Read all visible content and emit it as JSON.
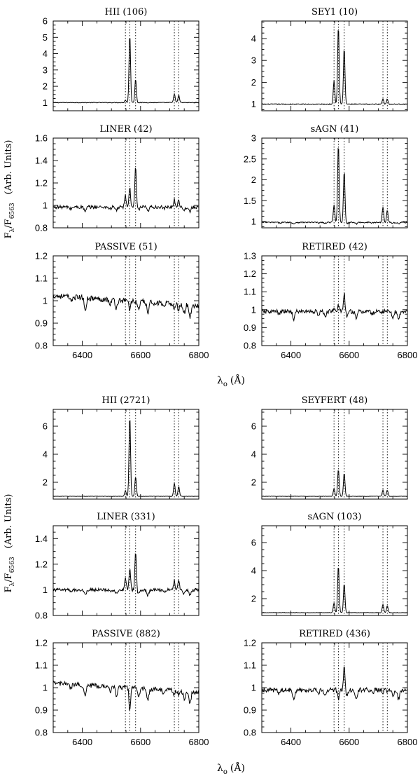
{
  "figure": {
    "xlabel_symbol": "λ",
    "xlabel_sub": "o",
    "xlabel_unit": "(Å)",
    "ylabel_symbol": "F",
    "ylabel_sub1": "λ",
    "ylabel_sep": "/F",
    "ylabel_sub2": "6563",
    "ylabel_units": "(Arb. Units)"
  },
  "chart_data": [
    {
      "type": "line",
      "title": "HII (106)",
      "xlim": [
        6300,
        6800
      ],
      "ylim": [
        0.5,
        6
      ],
      "yticks": [
        1,
        2,
        3,
        4,
        5,
        6
      ],
      "xticks": [
        6400,
        6600,
        6800
      ],
      "lines": [
        6548,
        6563,
        6583,
        6716,
        6731
      ],
      "cont": 1.0,
      "slope": 0.0,
      "noise": 0.02,
      "absorb": 0.0,
      "peaks": [
        0.15,
        4.2,
        1.45,
        0.55,
        0.45
      ]
    },
    {
      "type": "line",
      "title": "SEY1 (10)",
      "xlim": [
        6300,
        6800
      ],
      "ylim": [
        0.7,
        4.8
      ],
      "yticks": [
        1,
        2,
        3,
        4
      ],
      "xticks": [
        6400,
        6600,
        6800
      ],
      "lines": [
        6548,
        6563,
        6583,
        6716,
        6731
      ],
      "cont": 1.0,
      "slope": 0.0,
      "noise": 0.02,
      "absorb": 0.0,
      "peaks": [
        1.1,
        3.6,
        2.6,
        0.25,
        0.25
      ]
    },
    {
      "type": "line",
      "title": "LINER (42)",
      "xlim": [
        6300,
        6800
      ],
      "ylim": [
        0.8,
        1.6
      ],
      "yticks": [
        0.8,
        1,
        1.2,
        1.4,
        1.6
      ],
      "xticks": [
        6400,
        6600,
        6800
      ],
      "lines": [
        6548,
        6563,
        6583,
        6716,
        6731
      ],
      "cont": 0.985,
      "slope": 0.0,
      "noise": 0.015,
      "absorb": 0.05,
      "peaks": [
        0.1,
        0.18,
        0.36,
        0.07,
        0.07
      ]
    },
    {
      "type": "line",
      "title": "sAGN  (41)",
      "xlim": [
        6300,
        6800
      ],
      "ylim": [
        0.85,
        3.0
      ],
      "yticks": [
        1,
        1.5,
        2,
        2.5,
        3
      ],
      "xticks": [
        6400,
        6600,
        6800
      ],
      "lines": [
        6548,
        6563,
        6583,
        6716,
        6731
      ],
      "cont": 0.98,
      "slope": 0.0,
      "noise": 0.015,
      "absorb": 0.04,
      "peaks": [
        0.42,
        1.9,
        1.25,
        0.38,
        0.3
      ]
    },
    {
      "type": "line",
      "title": "PASSIVE (51)",
      "xlim": [
        6300,
        6800
      ],
      "ylim": [
        0.8,
        1.2
      ],
      "yticks": [
        0.8,
        0.9,
        1,
        1.1,
        1.2
      ],
      "xticks": [
        6400,
        6600,
        6800
      ],
      "lines": [
        6548,
        6563,
        6583,
        6716,
        6731
      ],
      "cont": 1.0,
      "slope": -9e-05,
      "noise": 0.012,
      "absorb": 0.06,
      "peaks": [
        0.0,
        -0.04,
        0.0,
        -0.02,
        -0.03
      ]
    },
    {
      "type": "line",
      "title": "RETIRED (42)",
      "xlim": [
        6300,
        6800
      ],
      "ylim": [
        0.8,
        1.3
      ],
      "yticks": [
        0.8,
        0.9,
        1,
        1.1,
        1.2,
        1.3
      ],
      "xticks": [
        6400,
        6600,
        6800
      ],
      "lines": [
        6548,
        6563,
        6583,
        6716,
        6731
      ],
      "cont": 0.99,
      "slope": 0.0,
      "noise": 0.012,
      "absorb": 0.05,
      "peaks": [
        0.02,
        0.04,
        0.1,
        0.0,
        0.0
      ]
    },
    {
      "type": "line",
      "title": "HII (2721)",
      "xlim": [
        6300,
        6800
      ],
      "ylim": [
        0.8,
        7.2
      ],
      "yticks": [
        2,
        4,
        6
      ],
      "xticks": [
        6400,
        6600,
        6800
      ],
      "lines": [
        6548,
        6563,
        6583,
        6716,
        6731
      ],
      "cont": 1.0,
      "slope": 0.0,
      "noise": 0.015,
      "absorb": 0.0,
      "peaks": [
        0.4,
        5.8,
        1.4,
        0.95,
        0.7
      ]
    },
    {
      "type": "line",
      "title": "SEYFERT (48)",
      "xlim": [
        6300,
        6800
      ],
      "ylim": [
        0.8,
        7.2
      ],
      "yticks": [
        2,
        4,
        6
      ],
      "xticks": [
        6400,
        6600,
        6800
      ],
      "lines": [
        6548,
        6563,
        6583,
        6716,
        6731
      ],
      "cont": 1.0,
      "slope": 0.0,
      "noise": 0.015,
      "absorb": 0.0,
      "peaks": [
        0.55,
        1.95,
        1.7,
        0.45,
        0.45
      ]
    },
    {
      "type": "line",
      "title": "LINER (331)",
      "xlim": [
        6300,
        6800
      ],
      "ylim": [
        0.8,
        1.5
      ],
      "yticks": [
        0.8,
        1,
        1.2,
        1.4
      ],
      "xticks": [
        6400,
        6600,
        6800
      ],
      "lines": [
        6548,
        6563,
        6583,
        6716,
        6731
      ],
      "cont": 1.0,
      "slope": 0.0,
      "noise": 0.012,
      "absorb": 0.05,
      "peaks": [
        0.1,
        0.17,
        0.3,
        0.07,
        0.08
      ]
    },
    {
      "type": "line",
      "title": "sAGN  (103)",
      "xlim": [
        6300,
        6800
      ],
      "ylim": [
        0.8,
        7.2
      ],
      "yticks": [
        2,
        4,
        6
      ],
      "xticks": [
        6400,
        6600,
        6800
      ],
      "lines": [
        6548,
        6563,
        6583,
        6716,
        6731
      ],
      "cont": 1.0,
      "slope": 0.0,
      "noise": 0.015,
      "absorb": 0.0,
      "peaks": [
        0.7,
        3.4,
        2.1,
        0.6,
        0.5
      ]
    },
    {
      "type": "line",
      "title": "PASSIVE (882)",
      "xlim": [
        6300,
        6800
      ],
      "ylim": [
        0.8,
        1.2
      ],
      "yticks": [
        0.8,
        0.9,
        1,
        1.1,
        1.2
      ],
      "xticks": [
        6400,
        6600,
        6800
      ],
      "lines": [
        6548,
        6563,
        6583,
        6716,
        6731
      ],
      "cont": 1.0,
      "slope": -8e-05,
      "noise": 0.01,
      "absorb": 0.06,
      "peaks": [
        0.0,
        -0.1,
        0.0,
        -0.02,
        -0.02
      ]
    },
    {
      "type": "line",
      "title": "RETIRED (436)",
      "xlim": [
        6300,
        6800
      ],
      "ylim": [
        0.8,
        1.2
      ],
      "yticks": [
        0.8,
        0.9,
        1,
        1.1,
        1.2
      ],
      "xticks": [
        6400,
        6600,
        6800
      ],
      "lines": [
        6548,
        6563,
        6583,
        6716,
        6731
      ],
      "cont": 0.99,
      "slope": 0.0,
      "noise": 0.01,
      "absorb": 0.05,
      "peaks": [
        0.0,
        -0.04,
        0.1,
        -0.01,
        -0.01
      ]
    }
  ]
}
